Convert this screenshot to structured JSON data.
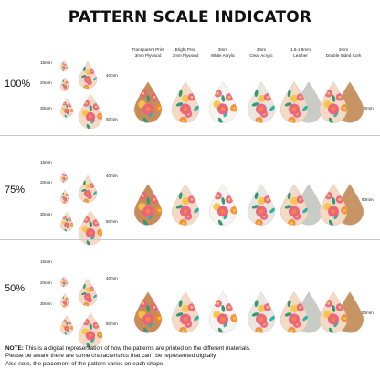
{
  "title": "PATTERN SCALE INDICATOR",
  "materials": [
    {
      "line1": "Transparent Print",
      "line2": "3mm Plywood"
    },
    {
      "line1": "Bright Print",
      "line2": "3mm Plywood"
    },
    {
      "line1": "3mm",
      "line2": "White Acrylic"
    },
    {
      "line1": "3mm",
      "line2": "Clear Acrylic"
    },
    {
      "line1": "1.6-1.8mm",
      "line2": "Leather"
    },
    {
      "line1": "3mm",
      "line2": "Double Sided Cork"
    }
  ],
  "scales": [
    {
      "label": "100%",
      "sizes": [
        "15mm",
        "20mm",
        "30mm",
        "40mm",
        "50mm"
      ],
      "row_size": "60mm"
    },
    {
      "label": "75%",
      "sizes": [
        "15mm",
        "20mm",
        "30mm",
        "40mm",
        "50mm"
      ],
      "row_size": "60mm"
    },
    {
      "label": "50%",
      "sizes": [
        "15mm",
        "20mm",
        "30mm",
        "40mm",
        "50mm"
      ],
      "row_size": "60mm"
    }
  ],
  "note": {
    "lead": "NOTE:",
    "line1": " This is a digital representation of how the patterns are printed on the different materials.",
    "line2": "Please be aware there are some characteristics that can't be represented digitally.",
    "line3": "Also note, the placement of the pattern varies on each shape."
  },
  "colors": {
    "plywood": "#c98b5a",
    "bright": "#f4d9c4",
    "white_acrylic": "#f7f3ee",
    "clear": "#e9e5df",
    "leather": "#c9cbc6",
    "cork": "#c79563",
    "pink": "#ec5f86",
    "orange": "#f38a2e",
    "green": "#2f9a74",
    "teal": "#2bb3a6",
    "yellow": "#f6c445"
  }
}
